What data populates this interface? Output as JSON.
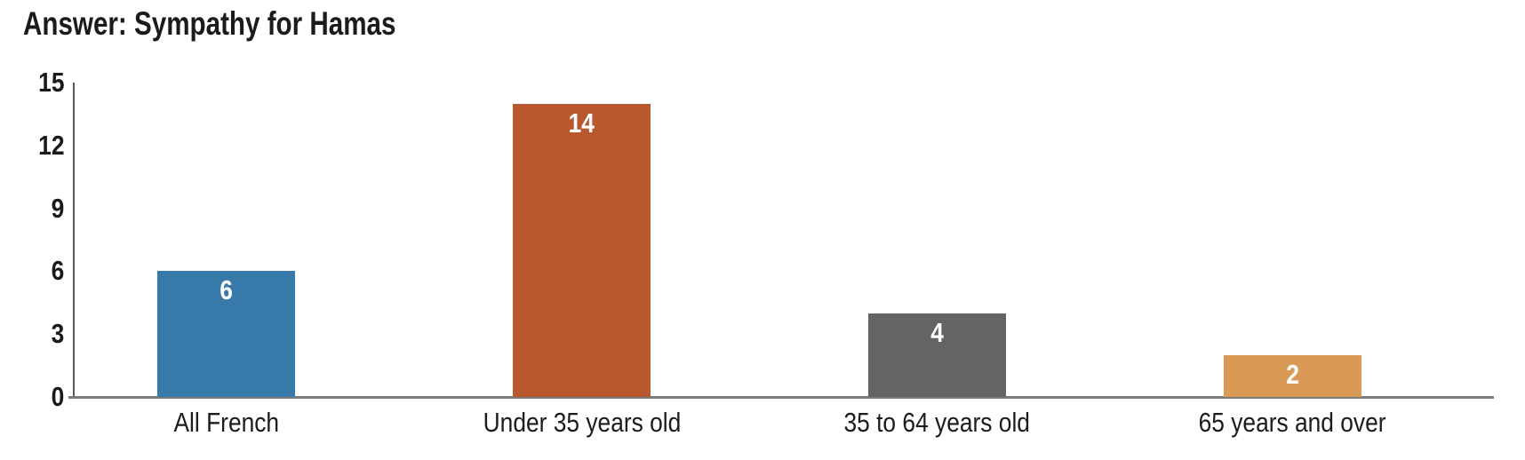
{
  "chart_data": {
    "type": "bar",
    "title": "Answer: Sympathy for Hamas",
    "categories": [
      "All French",
      "Under 35 years old",
      "35 to 64 years old",
      "65 years and over"
    ],
    "values": [
      6,
      14,
      4,
      2
    ],
    "bar_colors": [
      "#3779a9",
      "#b9572f",
      "#646464",
      "#d89a54"
    ],
    "value_label_color": "#ffffff",
    "tick_label_color": "#1a1a1a",
    "axis_line_color": "#7b7b7b",
    "xlabel": "",
    "ylabel": "",
    "ylim": [
      0,
      15
    ],
    "yticks": [
      0,
      3,
      6,
      9,
      12,
      15
    ],
    "grid": false,
    "legend": "none",
    "value_labels_shown": true
  }
}
